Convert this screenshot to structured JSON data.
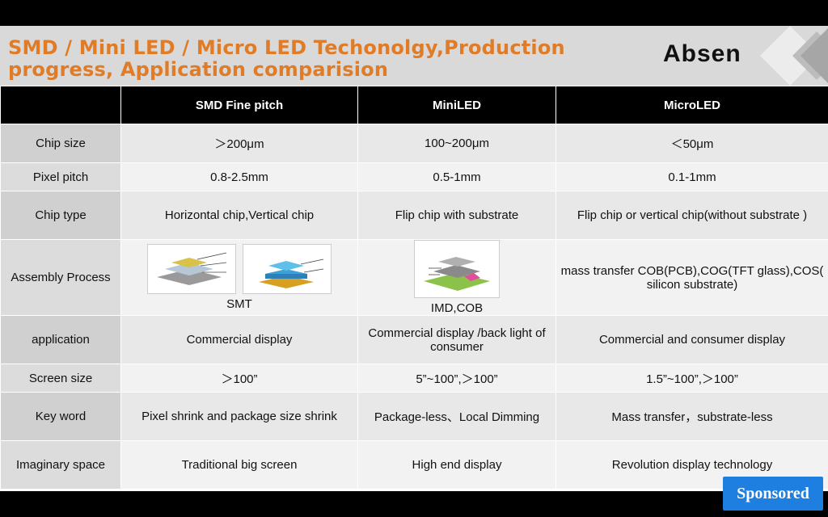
{
  "header": {
    "title_line1": "SMD / Mini LED / Micro LED Techonolgy,Production",
    "title_line2": "progress, Application comparision",
    "logo": "Absen",
    "colors": {
      "title": "#e07b26",
      "header_bg": "#d9d9d9",
      "table_header_bg": "#000000"
    }
  },
  "table": {
    "columns": [
      "",
      "SMD Fine pitch",
      "MiniLED",
      "MicroLED"
    ],
    "rows": [
      {
        "label": "Chip size",
        "cells": [
          "＞200μm",
          "100~200μm",
          "＜50μm"
        ]
      },
      {
        "label": "Pixel pitch",
        "cells": [
          "0.8-2.5mm",
          "0.5-1mm",
          "0.1-1mm"
        ]
      },
      {
        "label": "Chip type",
        "cells": [
          "Horizontal chip,Vertical chip",
          "Flip chip with substrate",
          "Flip chip or vertical chip(without substrate )"
        ]
      },
      {
        "label": "Assembly Process",
        "cells": [
          "SMT",
          "IMD,COB",
          "mass transfer COB(PCB),COG(TFT glass),COS( silicon substrate)"
        ]
      },
      {
        "label": "application",
        "cells": [
          "Commercial display",
          "Commercial display /back light of consumer",
          "Commercial and consumer display"
        ]
      },
      {
        "label": "Screen size",
        "cells": [
          "＞100”",
          "5”~100”,＞100”",
          "1.5”~100”,＞100”"
        ]
      },
      {
        "label": "Key word",
        "cells": [
          "Pixel shrink and package size shrink",
          "Package-less、Local Dimming",
          "Mass transfer，substrate-less"
        ]
      },
      {
        "label": "Imaginary space",
        "cells": [
          "Traditional big screen",
          "High end display",
          "Revolution display technology"
        ]
      }
    ]
  },
  "sponsored": {
    "label": "Sponsored",
    "color": "#1e7fe0"
  }
}
